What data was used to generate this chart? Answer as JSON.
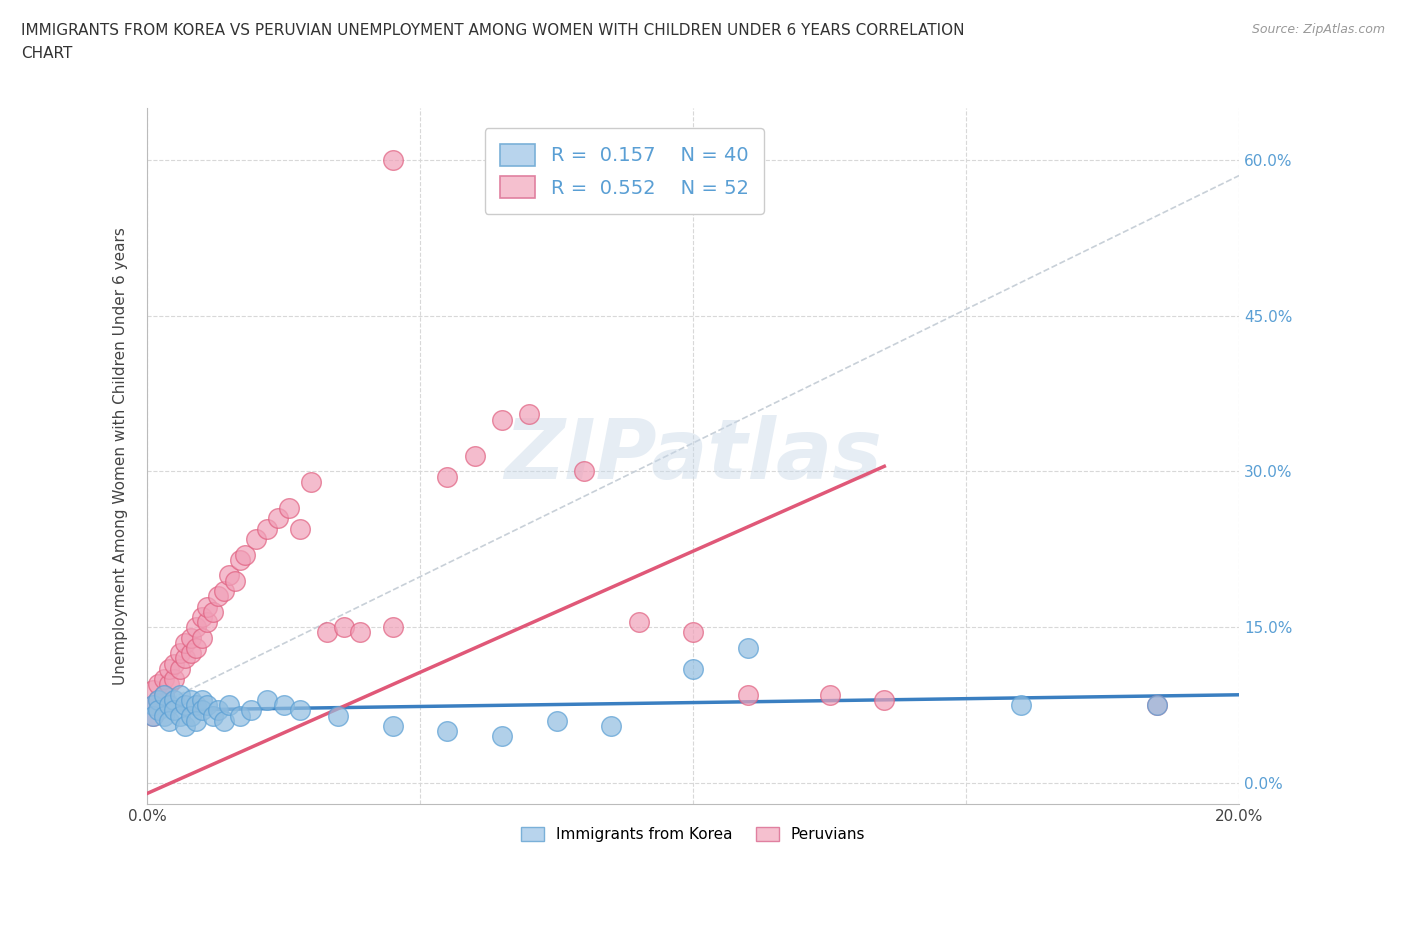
{
  "title_line1": "IMMIGRANTS FROM KOREA VS PERUVIAN UNEMPLOYMENT AMONG WOMEN WITH CHILDREN UNDER 6 YEARS CORRELATION",
  "title_line2": "CHART",
  "source": "Source: ZipAtlas.com",
  "ylabel": "Unemployment Among Women with Children Under 6 years",
  "xlim": [
    0.0,
    0.2
  ],
  "ylim": [
    -0.02,
    0.65
  ],
  "yticks": [
    0.0,
    0.15,
    0.3,
    0.45,
    0.6
  ],
  "xticks": [
    0.0,
    0.05,
    0.1,
    0.15,
    0.2
  ],
  "xtick_labels": [
    "0.0%",
    "",
    "",
    "",
    "20.0%"
  ],
  "ytick_labels_right": [
    "0.0%",
    "15.0%",
    "30.0%",
    "45.0%",
    "60.0%"
  ],
  "watermark": "ZIPatlas",
  "korea_color": "#90bde0",
  "korea_edge_color": "#5a9fd4",
  "peru_color": "#f0a0b8",
  "peru_edge_color": "#e06080",
  "korea_line_color": "#3a7fc1",
  "peru_line_color": "#e05878",
  "dash_line_color": "#c8d0d8",
  "background_color": "#ffffff",
  "grid_color": "#d8d8d8",
  "right_axis_color": "#5a9fd4",
  "korea_x": [
    0.001,
    0.001,
    0.002,
    0.002,
    0.003,
    0.003,
    0.004,
    0.004,
    0.005,
    0.005,
    0.006,
    0.006,
    0.007,
    0.007,
    0.008,
    0.008,
    0.009,
    0.009,
    0.01,
    0.01,
    0.011,
    0.012,
    0.013,
    0.014,
    0.015,
    0.017,
    0.019,
    0.022,
    0.025,
    0.028,
    0.035,
    0.045,
    0.055,
    0.065,
    0.075,
    0.085,
    0.1,
    0.11,
    0.16,
    0.185
  ],
  "korea_y": [
    0.075,
    0.065,
    0.08,
    0.07,
    0.085,
    0.065,
    0.075,
    0.06,
    0.08,
    0.07,
    0.085,
    0.065,
    0.075,
    0.055,
    0.08,
    0.065,
    0.075,
    0.06,
    0.08,
    0.07,
    0.075,
    0.065,
    0.07,
    0.06,
    0.075,
    0.065,
    0.07,
    0.08,
    0.075,
    0.07,
    0.065,
    0.055,
    0.05,
    0.045,
    0.06,
    0.055,
    0.11,
    0.13,
    0.075,
    0.075
  ],
  "peru_x": [
    0.001,
    0.001,
    0.001,
    0.002,
    0.002,
    0.003,
    0.003,
    0.004,
    0.004,
    0.005,
    0.005,
    0.006,
    0.006,
    0.007,
    0.007,
    0.008,
    0.008,
    0.009,
    0.009,
    0.01,
    0.01,
    0.011,
    0.011,
    0.012,
    0.013,
    0.014,
    0.015,
    0.016,
    0.017,
    0.018,
    0.02,
    0.022,
    0.024,
    0.026,
    0.028,
    0.03,
    0.033,
    0.036,
    0.039,
    0.045,
    0.045,
    0.055,
    0.06,
    0.065,
    0.07,
    0.08,
    0.09,
    0.1,
    0.11,
    0.125,
    0.135,
    0.185
  ],
  "peru_y": [
    0.065,
    0.075,
    0.09,
    0.08,
    0.095,
    0.085,
    0.1,
    0.095,
    0.11,
    0.1,
    0.115,
    0.11,
    0.125,
    0.12,
    0.135,
    0.125,
    0.14,
    0.13,
    0.15,
    0.14,
    0.16,
    0.155,
    0.17,
    0.165,
    0.18,
    0.185,
    0.2,
    0.195,
    0.215,
    0.22,
    0.235,
    0.245,
    0.255,
    0.265,
    0.245,
    0.29,
    0.145,
    0.15,
    0.145,
    0.6,
    0.15,
    0.295,
    0.315,
    0.35,
    0.355,
    0.3,
    0.155,
    0.145,
    0.085,
    0.085,
    0.08,
    0.075
  ],
  "korea_trend": [
    0.0,
    0.2,
    0.07,
    0.085
  ],
  "peru_trend": [
    0.0,
    0.135,
    -0.01,
    0.305
  ],
  "dash_trend": [
    0.0,
    0.2,
    0.07,
    0.585
  ]
}
